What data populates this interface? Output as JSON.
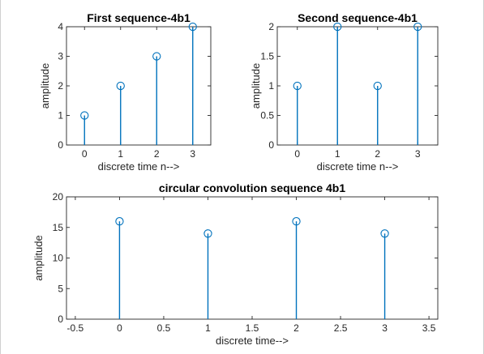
{
  "figure": {
    "background": "#ffffff",
    "stem_color": "#0072BD",
    "axis_color": "#262626"
  },
  "chart_data": [
    {
      "type": "stem",
      "title": "First sequence-4b1",
      "xlabel": "discrete time n-->",
      "ylabel": "amplitude",
      "x": [
        0,
        1,
        2,
        3
      ],
      "y": [
        1,
        2,
        3,
        4
      ],
      "xlim": [
        -0.5,
        3.5
      ],
      "ylim": [
        0,
        4
      ],
      "xticks": [
        0,
        1,
        2,
        3
      ],
      "xtick_labels": [
        "0",
        "1",
        "2",
        "3"
      ],
      "yticks": [
        0,
        1,
        2,
        3,
        4
      ],
      "ytick_labels": [
        "0",
        "1",
        "2",
        "3",
        "4"
      ],
      "grid": false,
      "marker": "circle"
    },
    {
      "type": "stem",
      "title": "Second sequence-4b1",
      "xlabel": "discrete time n-->",
      "ylabel": "amplitude",
      "x": [
        0,
        1,
        2,
        3
      ],
      "y": [
        1,
        2,
        1,
        2
      ],
      "xlim": [
        -0.5,
        3.5
      ],
      "ylim": [
        0,
        2
      ],
      "xticks": [
        0,
        1,
        2,
        3
      ],
      "xtick_labels": [
        "0",
        "1",
        "2",
        "3"
      ],
      "yticks": [
        0,
        0.5,
        1,
        1.5,
        2
      ],
      "ytick_labels": [
        "0",
        "0.5",
        "1",
        "1.5",
        "2"
      ],
      "grid": false,
      "marker": "circle"
    },
    {
      "type": "stem",
      "title": "circular convolution sequence 4b1",
      "xlabel": "discrete time-->",
      "ylabel": "amplitude",
      "x": [
        0,
        1,
        2,
        3
      ],
      "y": [
        16,
        14,
        16,
        14
      ],
      "xlim": [
        -0.6,
        3.6
      ],
      "ylim": [
        0,
        20
      ],
      "xticks": [
        -0.5,
        0,
        0.5,
        1,
        1.5,
        2,
        2.5,
        3,
        3.5
      ],
      "xtick_labels": [
        "-0.5",
        "0",
        "0.5",
        "1",
        "1.5",
        "2",
        "2.5",
        "3",
        "3.5"
      ],
      "yticks": [
        0,
        5,
        10,
        15,
        20
      ],
      "ytick_labels": [
        "0",
        "5",
        "10",
        "15",
        "20"
      ],
      "grid": false,
      "marker": "circle"
    }
  ]
}
